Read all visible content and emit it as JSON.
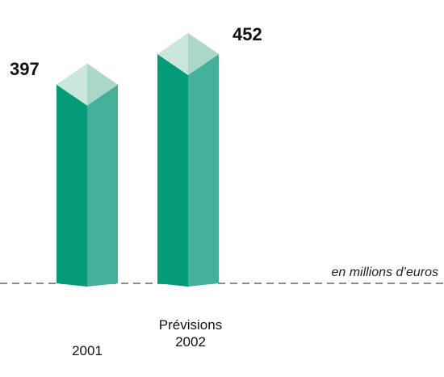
{
  "chart_data": {
    "type": "bar",
    "style": "3d-prism",
    "categories": [
      "2001",
      "Prévisions 2002"
    ],
    "category_lines": [
      [
        "2001"
      ],
      [
        "Prévisions",
        "2002"
      ]
    ],
    "values": [
      397,
      452
    ],
    "value_labels": [
      "397",
      "452"
    ],
    "unit_note": "en millions d’euros",
    "baseline": "dashed",
    "grid": false,
    "colors": {
      "front": "#049b78",
      "side": "#45b09a",
      "top_light": "#cbe7dc",
      "top_dark": "#a9d7c8",
      "baseline": "#8c8c8c"
    }
  }
}
